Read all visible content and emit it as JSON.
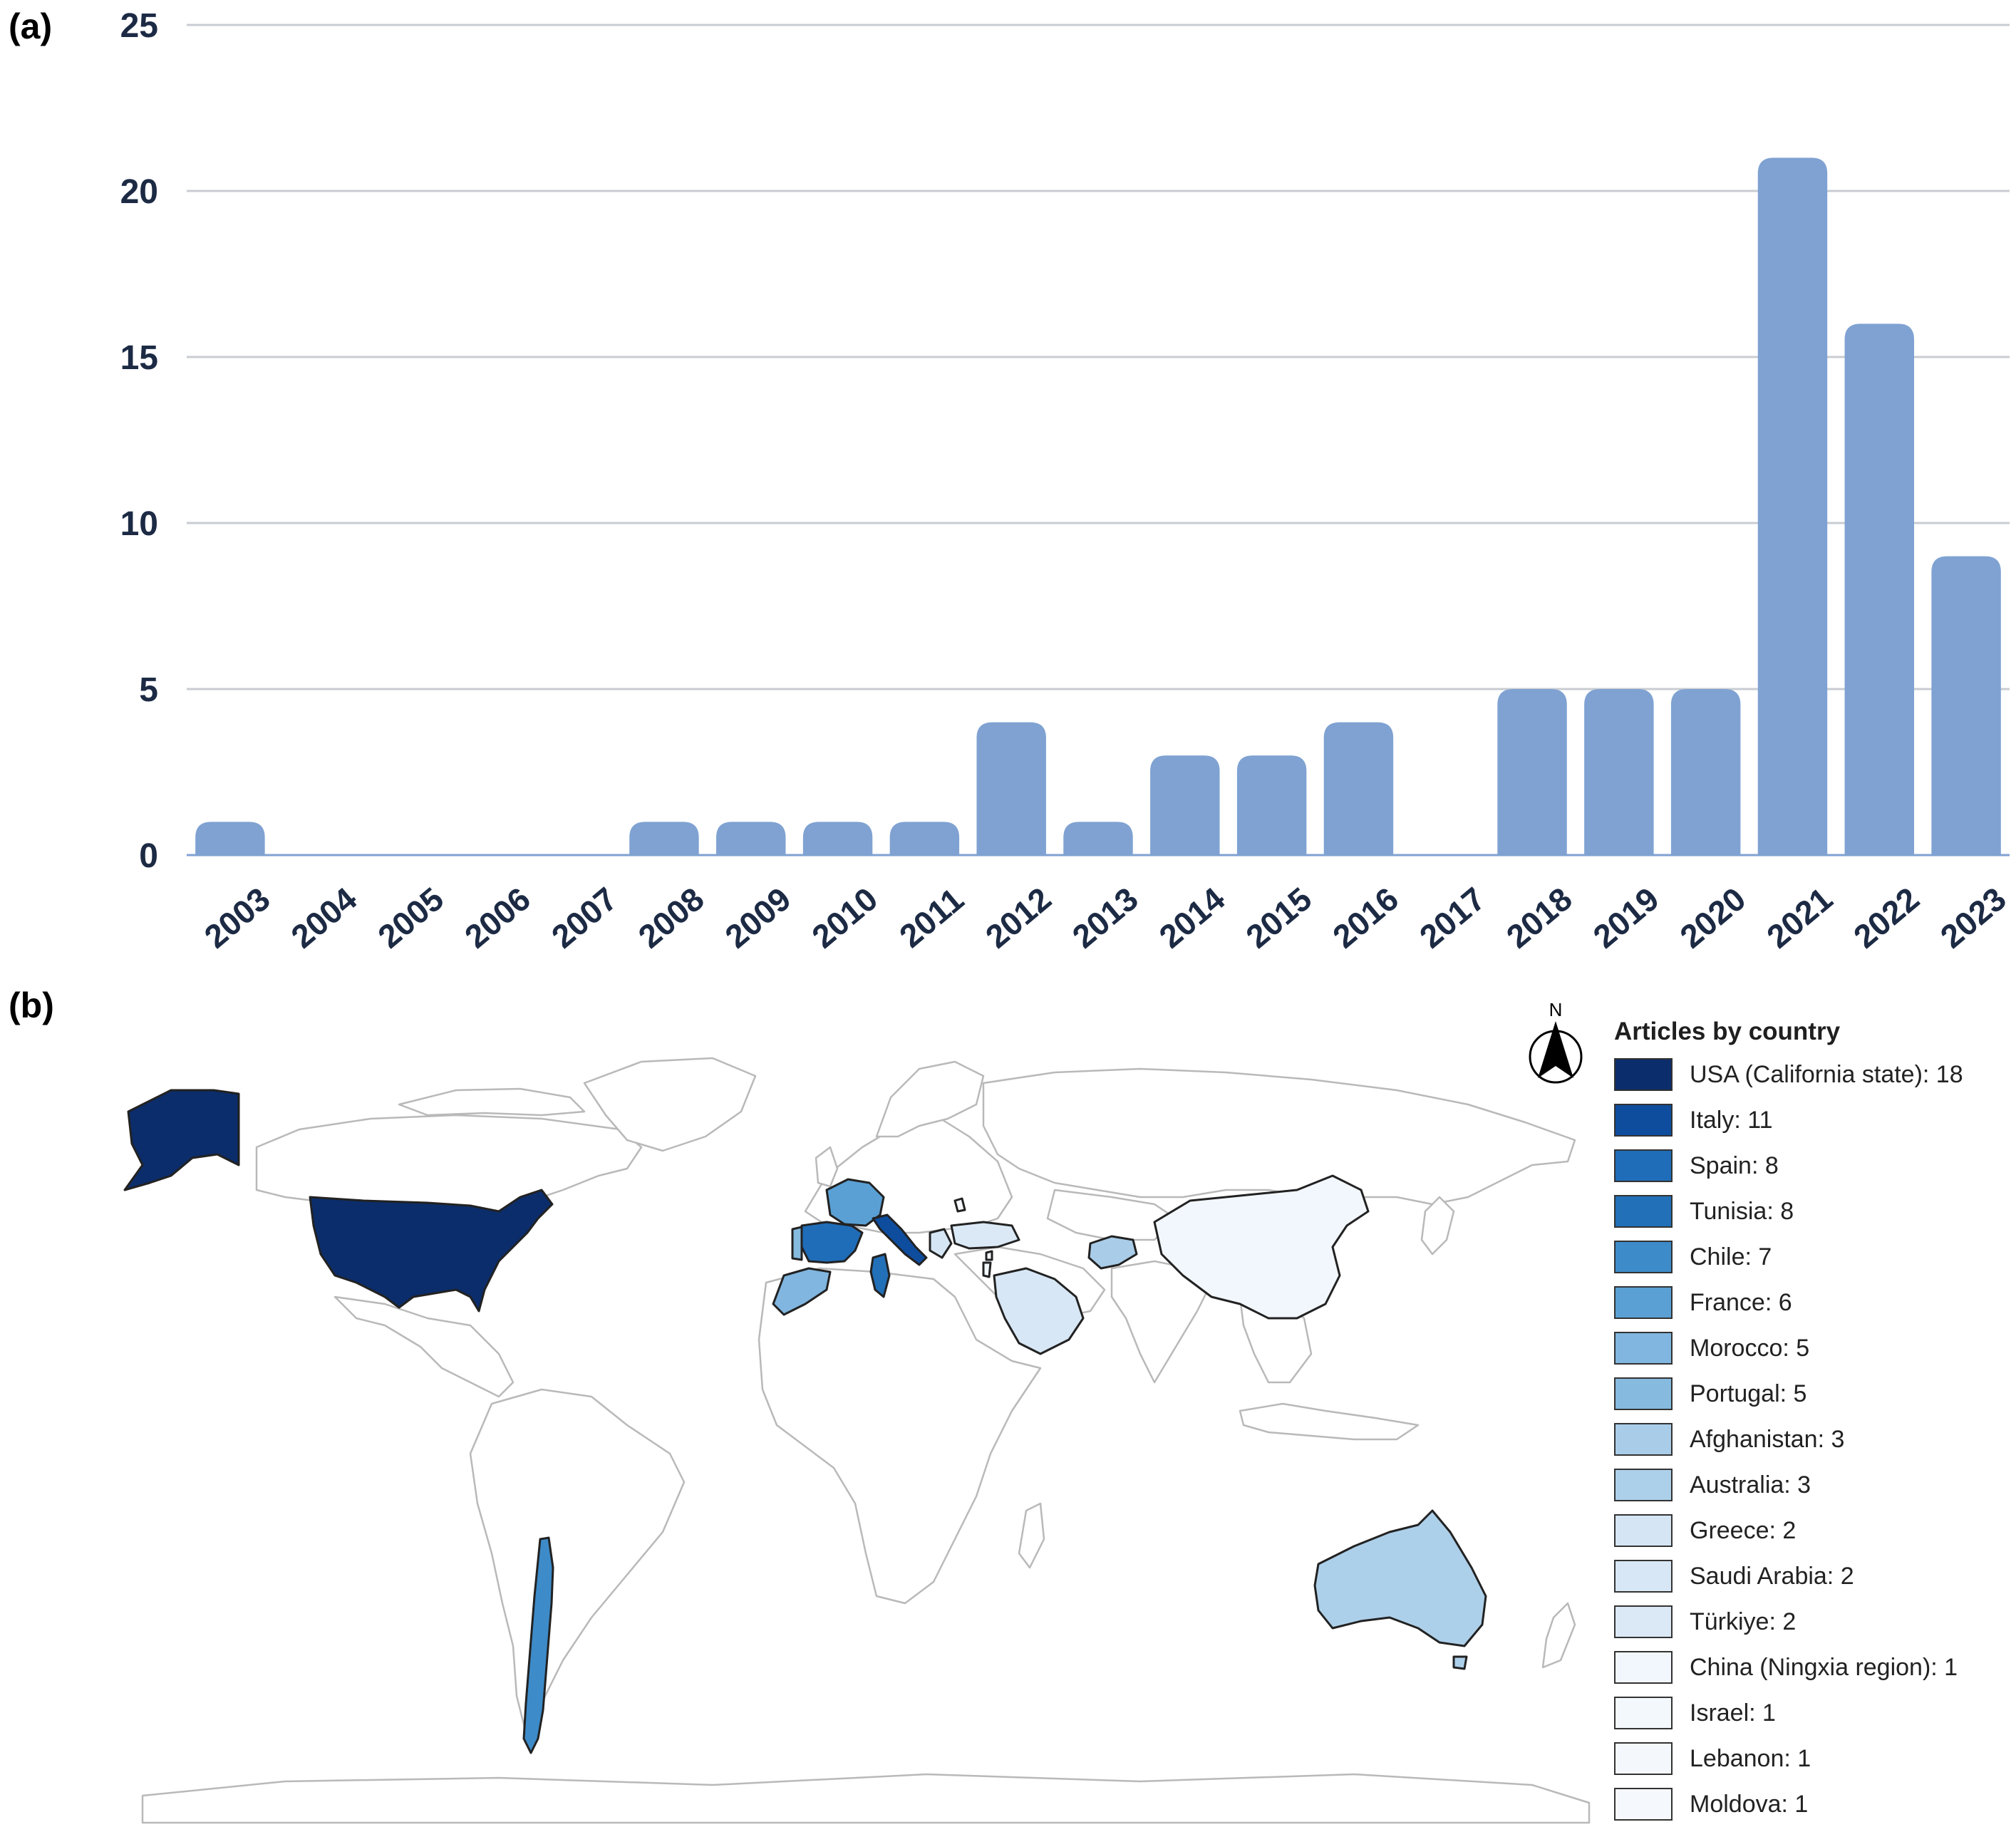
{
  "panel_a_label": "(a)",
  "panel_b_label": "(b)",
  "chart_data": {
    "type": "bar",
    "categories": [
      "2003",
      "2004",
      "2005",
      "2006",
      "2007",
      "2008",
      "2009",
      "2010",
      "2011",
      "2012",
      "2013",
      "2014",
      "2015",
      "2016",
      "2017",
      "2018",
      "2019",
      "2020",
      "2021",
      "2022",
      "2023"
    ],
    "values": [
      1,
      0,
      0,
      0,
      0,
      1,
      1,
      1,
      1,
      4,
      1,
      3,
      3,
      4,
      0,
      5,
      5,
      5,
      21,
      16,
      9
    ],
    "yticks": [
      "0",
      "5",
      "10",
      "15",
      "20",
      "25"
    ],
    "ylim": [
      0,
      25
    ],
    "grid": true,
    "bar_color": "#7fa2d2",
    "title": "",
    "xlabel": "",
    "ylabel": ""
  },
  "map": {
    "north_label": "N",
    "legend_title": "Articles by country",
    "items": [
      {
        "label": "USA (California state): 18",
        "color": "#0b2d6b"
      },
      {
        "label": "Italy: 11",
        "color": "#0e4d9e"
      },
      {
        "label": "Spain: 8",
        "color": "#1f6db8"
      },
      {
        "label": "Tunisia: 8",
        "color": "#2270b8"
      },
      {
        "label": "Chile: 7",
        "color": "#3d8bc9"
      },
      {
        "label": "France: 6",
        "color": "#5aa0d4"
      },
      {
        "label": "Morocco: 5",
        "color": "#80b6df"
      },
      {
        "label": "Portugal: 5",
        "color": "#86badf"
      },
      {
        "label": "Afghanistan: 3",
        "color": "#a9cde9"
      },
      {
        "label": "Australia: 3",
        "color": "#add0ea"
      },
      {
        "label": "Greece: 2",
        "color": "#d5e5f4"
      },
      {
        "label": "Saudi Arabia: 2",
        "color": "#d8e7f5"
      },
      {
        "label": "Türkiye: 2",
        "color": "#dbe9f6"
      },
      {
        "label": "China (Ningxia region): 1",
        "color": "#f2f7fd"
      },
      {
        "label": "Israel: 1",
        "color": "#f3f8fd"
      },
      {
        "label": "Lebanon: 1",
        "color": "#f4f8fd"
      },
      {
        "label": "Moldova: 1",
        "color": "#f5f9fd"
      }
    ]
  }
}
